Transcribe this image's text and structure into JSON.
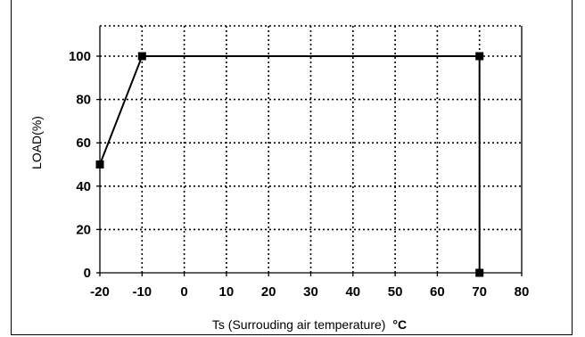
{
  "chart_data": {
    "type": "line",
    "title": "",
    "xlabel": "Ts (Surrouding air temperature)",
    "xlabel_unit": "°C",
    "ylabel": "LOAD(%)",
    "xlim": [
      -20,
      80
    ],
    "ylim": [
      0,
      110
    ],
    "x_ticks": [
      -20,
      -10,
      0,
      10,
      20,
      30,
      40,
      50,
      60,
      70,
      80
    ],
    "x_tick_labels": [
      "-20",
      "-10",
      "0",
      "10",
      "20",
      "30",
      "40",
      "50",
      "60",
      "70",
      "80"
    ],
    "y_ticks": [
      0,
      20,
      40,
      60,
      80,
      100
    ],
    "y_tick_labels": [
      "0",
      "20",
      "40",
      "60",
      "80",
      "100"
    ],
    "grid": true,
    "series": [
      {
        "x": [
          -20,
          -10,
          70,
          70
        ],
        "y": [
          50,
          100,
          100,
          0
        ],
        "marker": "square",
        "color": "#000000"
      }
    ]
  }
}
